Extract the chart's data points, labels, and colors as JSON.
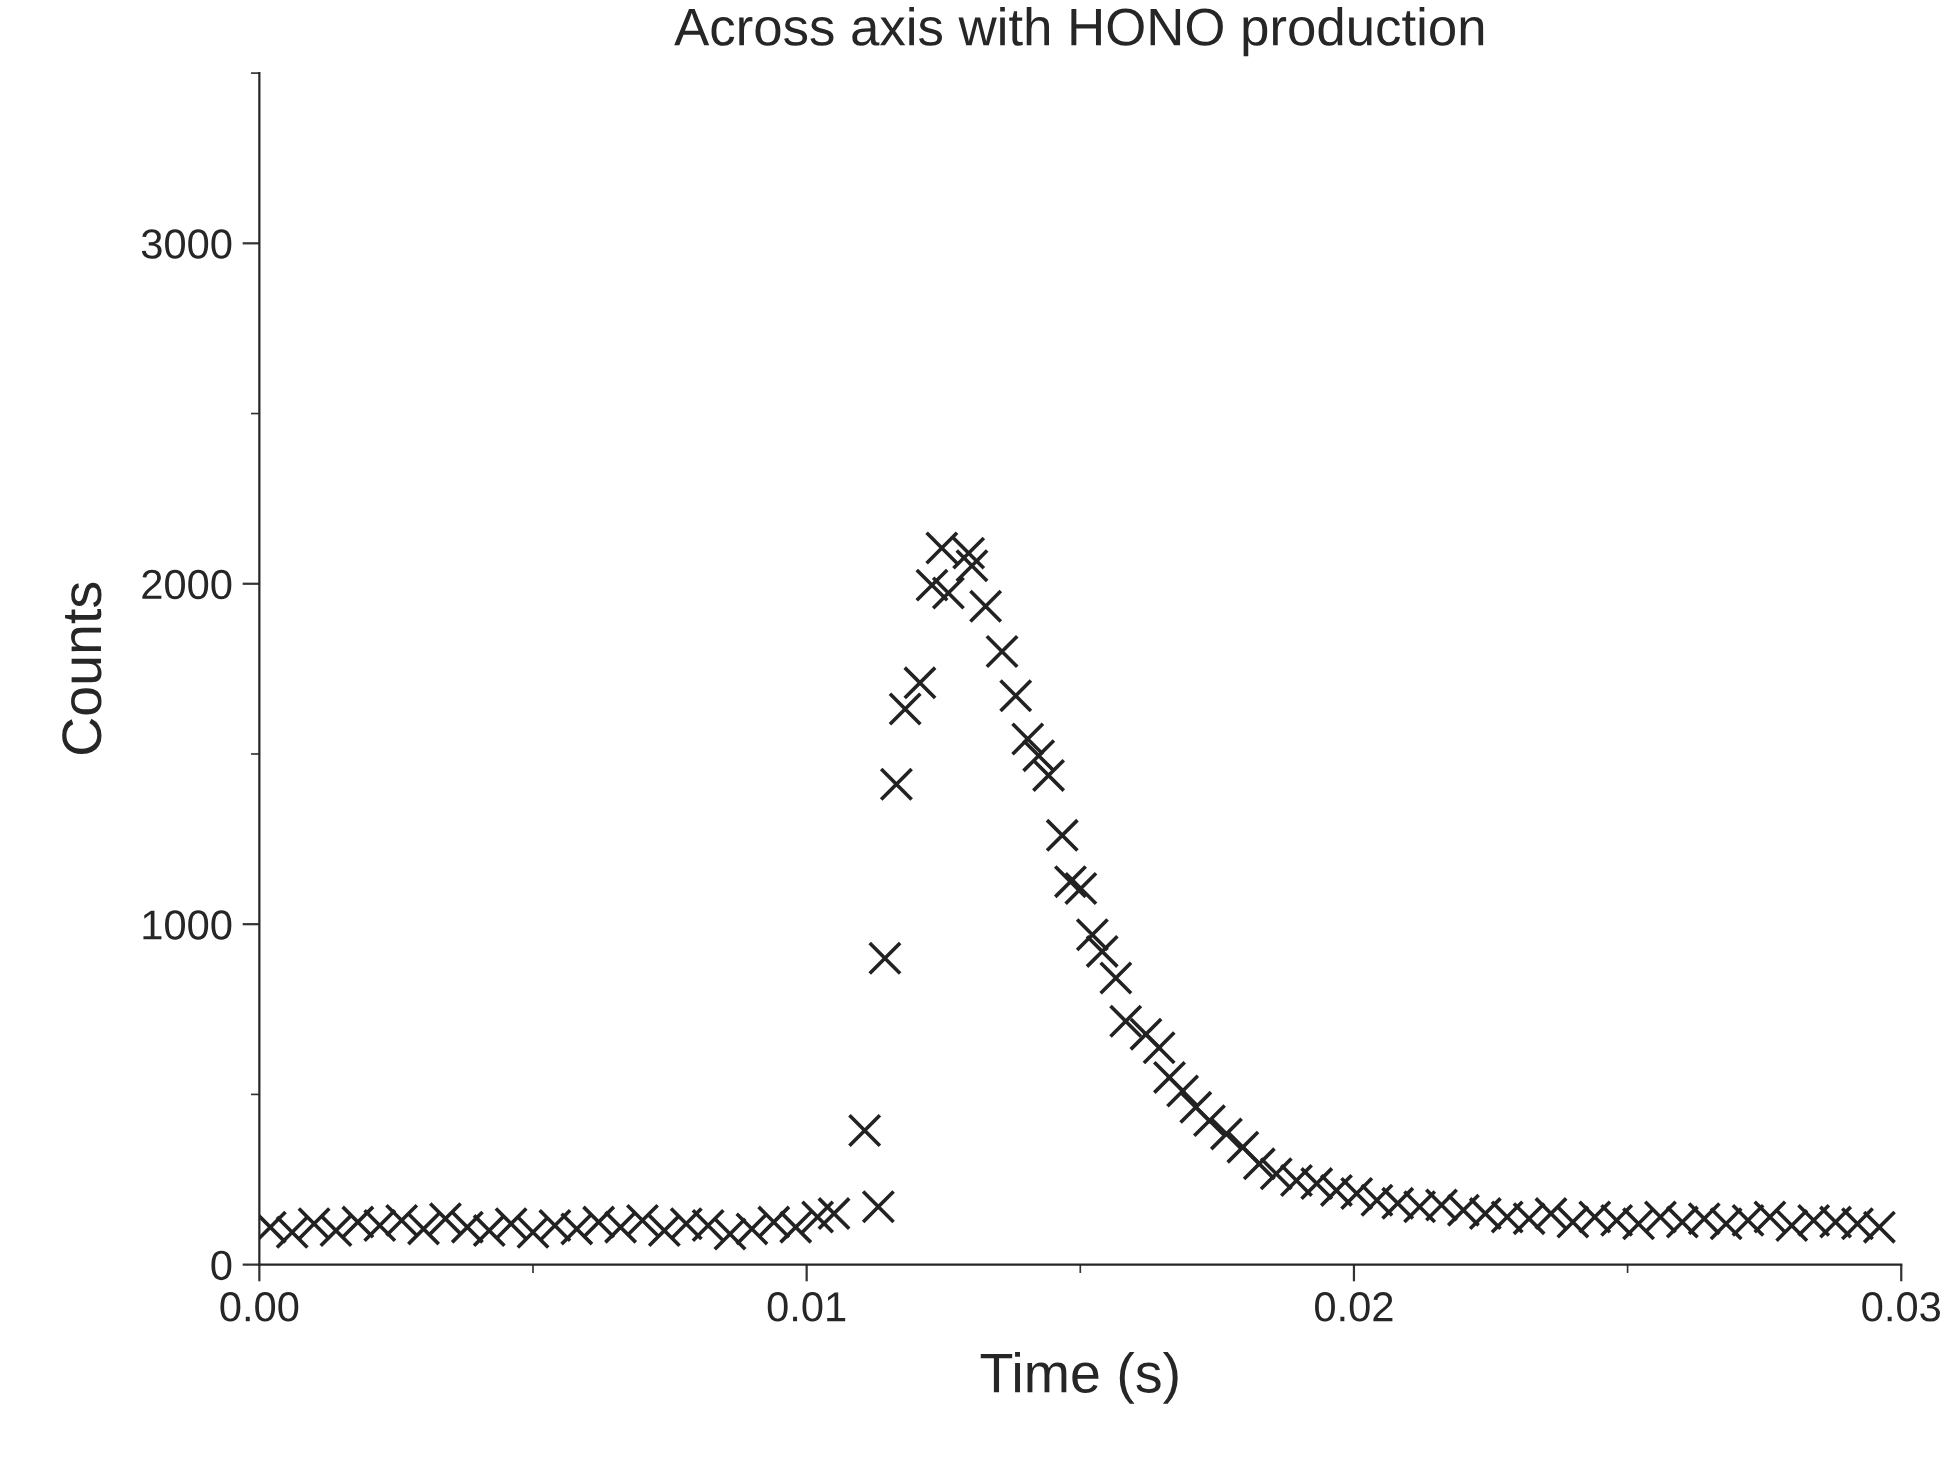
{
  "chart_data": {
    "type": "scatter",
    "title": "Across axis with HONO production",
    "xlabel": "Time (s)",
    "ylabel": "Counts",
    "marker": "cross",
    "grid": false,
    "legend": false,
    "xlim": [
      0,
      0.03
    ],
    "xticks": [
      {
        "value": 0,
        "label": "0.00"
      },
      0.01,
      0.02,
      0.03
    ],
    "ylim": [
      0,
      3500
    ],
    "yticks": [
      0,
      1000,
      2000,
      3000
    ],
    "series": [
      {
        "color": "#222222",
        "x": [
          0.0002,
          0.0006,
          0.001,
          0.0014,
          0.0018,
          0.0022,
          0.0026,
          0.003,
          0.0034,
          0.0038,
          0.0042,
          0.0046,
          0.005,
          0.0054,
          0.0058,
          0.0062,
          0.0066,
          0.007,
          0.0074,
          0.0078,
          0.0082,
          0.0086,
          0.009,
          0.0094,
          0.0098,
          0.0102,
          0.0105,
          0.01106,
          0.01131,
          0.01143,
          0.01164,
          0.0118,
          0.01207,
          0.01229,
          0.01247,
          0.01259,
          0.01296,
          0.01302,
          0.01327,
          0.01357,
          0.01382,
          0.01404,
          0.01424,
          0.01442,
          0.01467,
          0.01482,
          0.01501,
          0.01522,
          0.0154,
          0.01565,
          0.01583,
          0.0162,
          0.01644,
          0.01663,
          0.01687,
          0.01711,
          0.01736,
          0.01767,
          0.01797,
          0.01827,
          0.01858,
          0.01895,
          0.01932,
          0.01968,
          0.02005,
          0.02042,
          0.0208,
          0.0212,
          0.0216,
          0.022,
          0.0224,
          0.0228,
          0.0232,
          0.0236,
          0.024,
          0.0244,
          0.0248,
          0.0252,
          0.0256,
          0.026,
          0.0264,
          0.0268,
          0.0272,
          0.0276,
          0.028,
          0.0284,
          0.0288,
          0.0292,
          0.0296
        ],
        "values": [
          110,
          95,
          120,
          100,
          125,
          115,
          130,
          105,
          135,
          110,
          100,
          120,
          95,
          115,
          105,
          125,
          110,
          130,
          100,
          120,
          115,
          90,
          105,
          125,
          110,
          140,
          150,
          394,
          170,
          900,
          1411,
          1632,
          1709,
          1996,
          2105,
          1973,
          2090,
          2053,
          1934,
          1801,
          1671,
          1544,
          1495,
          1437,
          1261,
          1125,
          1105,
          969,
          920,
          842,
          715,
          677,
          637,
          550,
          510,
          462,
          423,
          384,
          345,
          296,
          267,
          247,
          238,
          218,
          209,
          189,
          180,
          170,
          175,
          160,
          150,
          140,
          135,
          150,
          125,
          140,
          130,
          120,
          140,
          125,
          135,
          120,
          130,
          140,
          115,
          130,
          125,
          120,
          110
        ]
      }
    ]
  }
}
